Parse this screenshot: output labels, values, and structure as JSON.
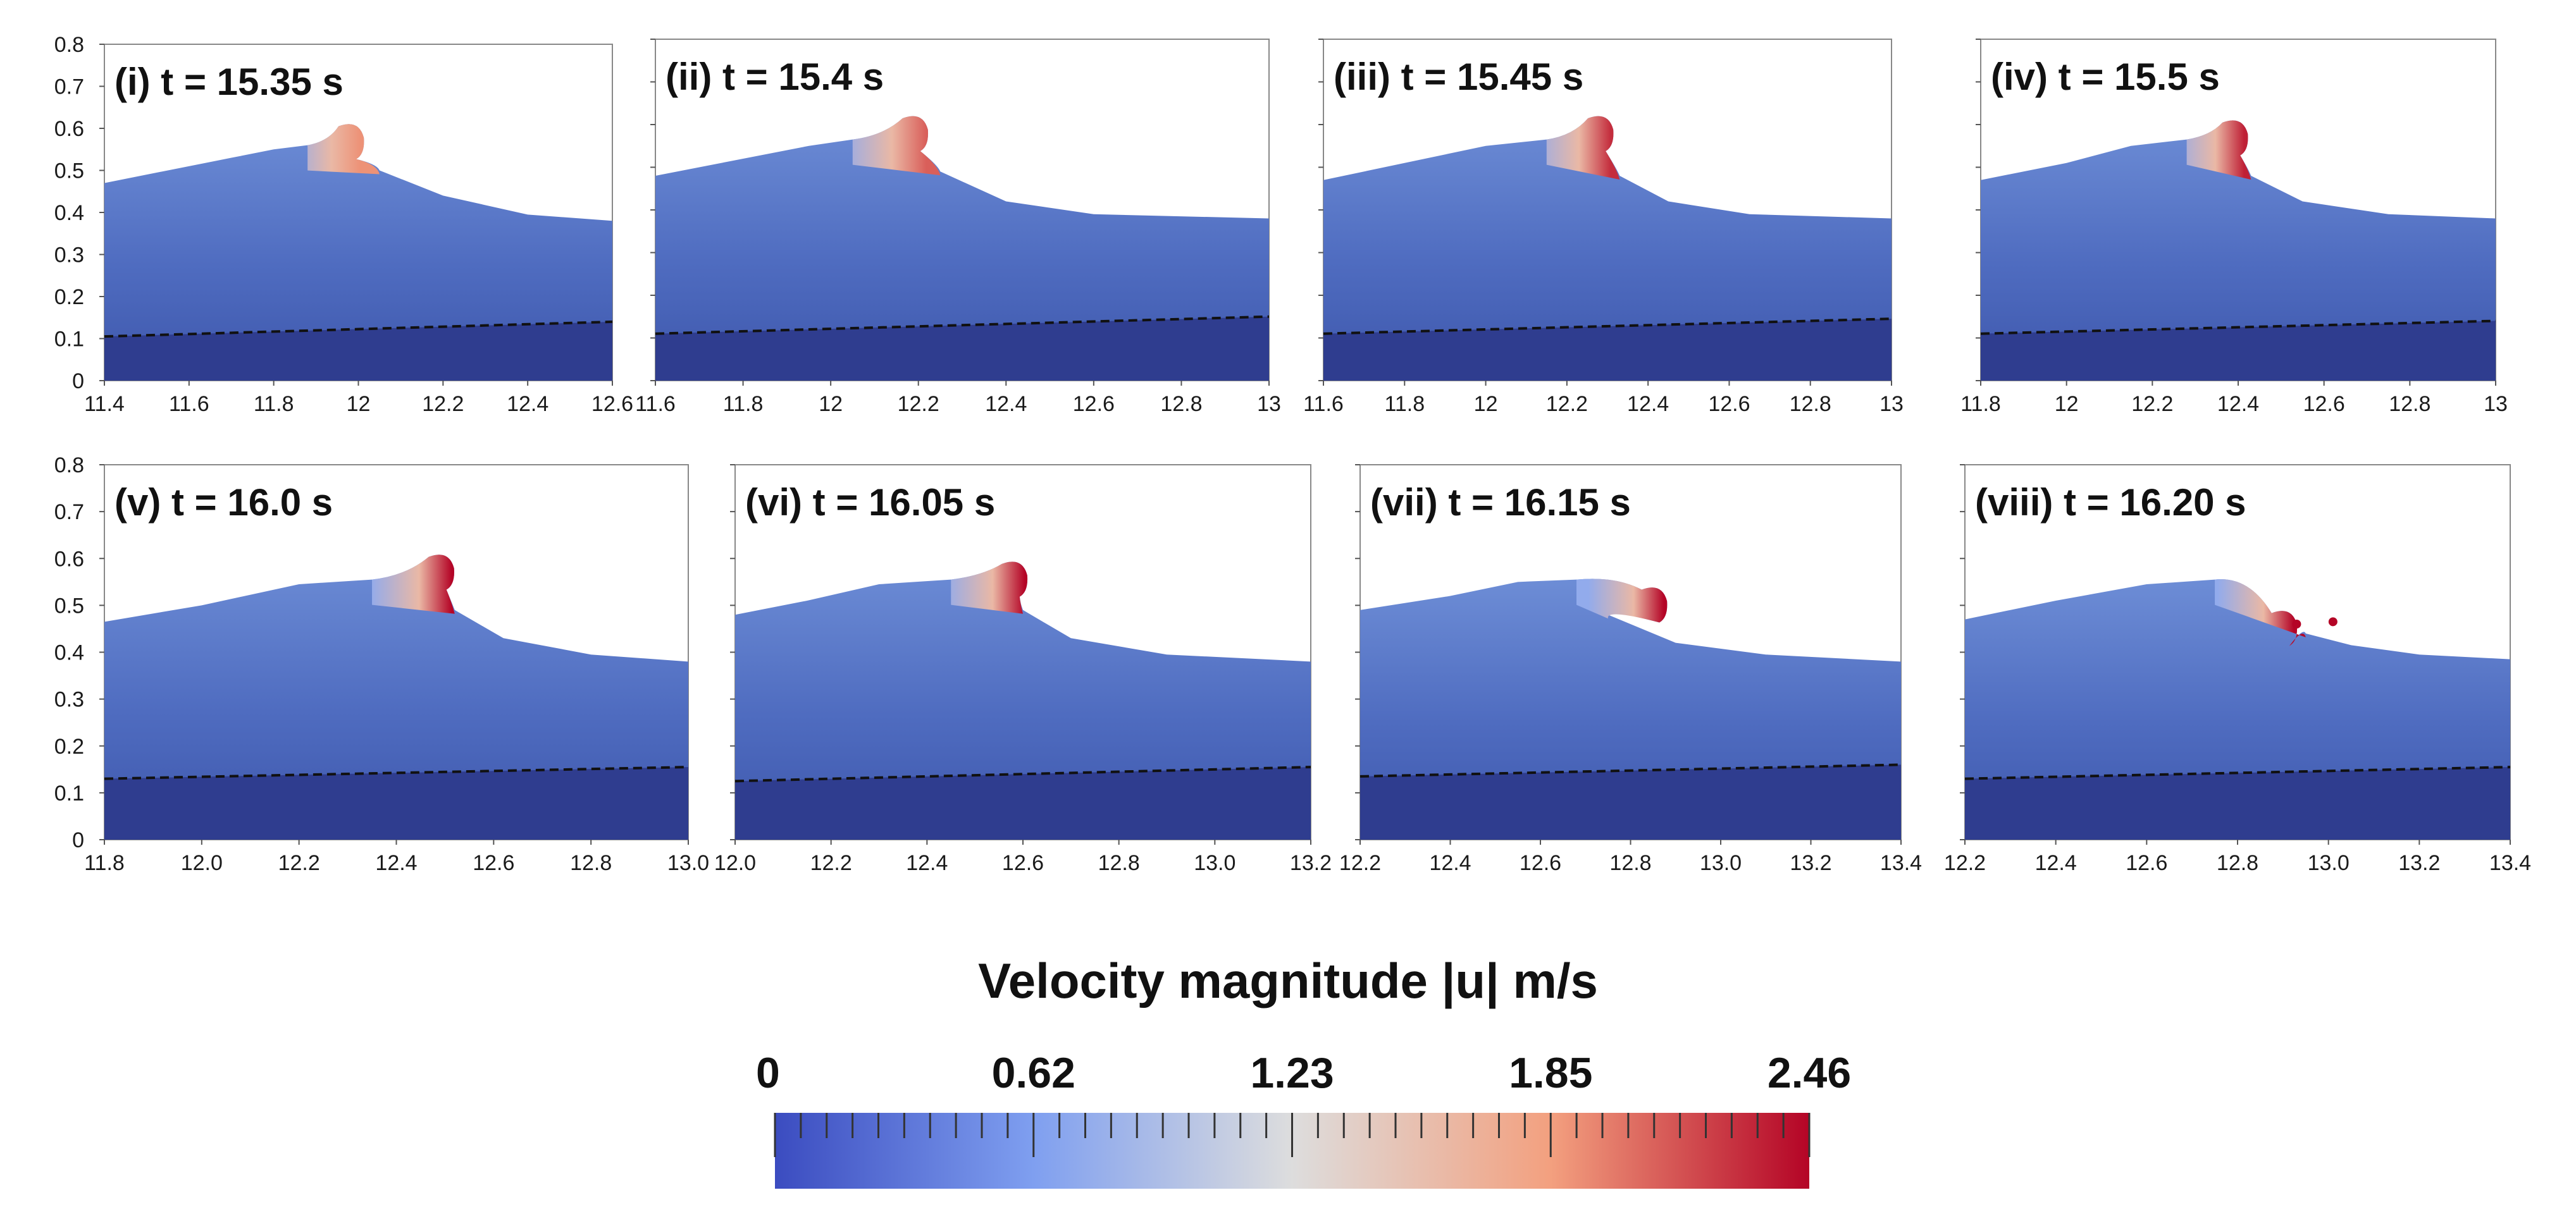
{
  "figure": {
    "description_title": "Velocity magnitude |u| m/s"
  },
  "chart_data": [
    {
      "type": "area",
      "label": "(i) t = 15.35 s",
      "xlim": [
        11.4,
        12.6
      ],
      "ylim": [
        0,
        0.8
      ],
      "xticks": [
        "11.4",
        "11.6",
        "11.8",
        "12",
        "12.2",
        "12.4",
        "12.6"
      ],
      "yticks": [
        "0",
        "0.1",
        "0.2",
        "0.3",
        "0.4",
        "0.5",
        "0.6",
        "0.7",
        "0.8"
      ],
      "show_yticklabels": true,
      "bed_line": {
        "x": [
          11.4,
          12.6
        ],
        "y": [
          0.105,
          0.14
        ]
      },
      "surface": {
        "x": [
          11.4,
          11.55,
          11.7,
          11.8,
          11.88
        ],
        "y": [
          0.47,
          0.5,
          0.53,
          0.55,
          0.56
        ]
      },
      "crest": {
        "x": 11.98,
        "y": 0.59,
        "peak_velocity": 1.9
      },
      "tail": {
        "x": [
          12.05,
          12.2,
          12.4,
          12.6
        ],
        "y": [
          0.5,
          0.44,
          0.395,
          0.38
        ]
      },
      "detached_drops": []
    },
    {
      "type": "area",
      "label": "(ii) t = 15.4 s",
      "xlim": [
        11.6,
        13.0
      ],
      "ylim": [
        0,
        0.8
      ],
      "xticks": [
        "11.6",
        "11.8",
        "12",
        "12.2",
        "12.4",
        "12.6",
        "12.8",
        "13"
      ],
      "yticks": [],
      "show_yticklabels": false,
      "bed_line": {
        "x": [
          11.6,
          13.0
        ],
        "y": [
          0.11,
          0.15
        ]
      },
      "surface": {
        "x": [
          11.6,
          11.8,
          11.95,
          12.05
        ],
        "y": [
          0.48,
          0.52,
          0.55,
          0.565
        ]
      },
      "crest": {
        "x": 12.19,
        "y": 0.6,
        "peak_velocity": 2.1
      },
      "tail": {
        "x": [
          12.25,
          12.4,
          12.6,
          13.0
        ],
        "y": [
          0.49,
          0.42,
          0.39,
          0.38
        ]
      },
      "detached_drops": []
    },
    {
      "type": "area",
      "label": "(iii) t = 15.45 s",
      "xlim": [
        11.6,
        13.0
      ],
      "ylim": [
        0,
        0.8
      ],
      "xticks": [
        "11.6",
        "11.8",
        "12",
        "12.2",
        "12.4",
        "12.6",
        "12.8",
        "13"
      ],
      "yticks": [],
      "show_yticklabels": false,
      "bed_line": {
        "x": [
          11.6,
          13.0
        ],
        "y": [
          0.11,
          0.145
        ]
      },
      "surface": {
        "x": [
          11.6,
          11.8,
          12.0,
          12.15
        ],
        "y": [
          0.47,
          0.51,
          0.55,
          0.565
        ]
      },
      "crest": {
        "x": 12.28,
        "y": 0.6,
        "peak_velocity": 2.3
      },
      "tail": {
        "x": [
          12.33,
          12.45,
          12.65,
          13.0
        ],
        "y": [
          0.48,
          0.42,
          0.39,
          0.38
        ]
      },
      "detached_drops": []
    },
    {
      "type": "area",
      "label": "(iv) t = 15.5 s",
      "xlim": [
        11.8,
        13.0
      ],
      "ylim": [
        0,
        0.8
      ],
      "xticks": [
        "11.8",
        "12",
        "12.2",
        "12.4",
        "12.6",
        "12.8",
        "13"
      ],
      "yticks": [],
      "show_yticklabels": false,
      "bed_line": {
        "x": [
          11.8,
          13.0
        ],
        "y": [
          0.11,
          0.14
        ]
      },
      "surface": {
        "x": [
          11.8,
          12.0,
          12.15,
          12.28
        ],
        "y": [
          0.47,
          0.51,
          0.55,
          0.565
        ]
      },
      "crest": {
        "x": 12.39,
        "y": 0.59,
        "peak_velocity": 2.35
      },
      "tail": {
        "x": [
          12.43,
          12.55,
          12.75,
          13.0
        ],
        "y": [
          0.48,
          0.42,
          0.39,
          0.38
        ]
      },
      "detached_drops": []
    },
    {
      "type": "area",
      "label": "(v) t = 16.0 s",
      "xlim": [
        11.8,
        13.0
      ],
      "ylim": [
        0,
        0.8
      ],
      "xticks": [
        "11.8",
        "12.0",
        "12.2",
        "12.4",
        "12.6",
        "12.8",
        "13.0"
      ],
      "yticks": [
        "0",
        "0.1",
        "0.2",
        "0.3",
        "0.4",
        "0.5",
        "0.6",
        "0.7",
        "0.8"
      ],
      "show_yticklabels": true,
      "bed_line": {
        "x": [
          11.8,
          13.0
        ],
        "y": [
          0.13,
          0.155
        ]
      },
      "surface": {
        "x": [
          11.8,
          12.0,
          12.2,
          12.35
        ],
        "y": [
          0.465,
          0.5,
          0.545,
          0.555
        ]
      },
      "crest": {
        "x": 12.49,
        "y": 0.59,
        "peak_velocity": 2.46
      },
      "tail": {
        "x": [
          12.52,
          12.62,
          12.8,
          13.0
        ],
        "y": [
          0.49,
          0.43,
          0.395,
          0.38
        ]
      },
      "detached_drops": []
    },
    {
      "type": "area",
      "label": "(vi) t = 16.05 s",
      "xlim": [
        12.0,
        13.2
      ],
      "ylim": [
        0,
        0.8
      ],
      "xticks": [
        "12.0",
        "12.2",
        "12.4",
        "12.6",
        "12.8",
        "13.0",
        "13.2"
      ],
      "yticks": [],
      "show_yticklabels": false,
      "bed_line": {
        "x": [
          12.0,
          13.2
        ],
        "y": [
          0.125,
          0.155
        ]
      },
      "surface": {
        "x": [
          12.0,
          12.15,
          12.3,
          12.45
        ],
        "y": [
          0.48,
          0.51,
          0.545,
          0.555
        ]
      },
      "crest": {
        "x": 12.58,
        "y": 0.575,
        "peak_velocity": 2.46
      },
      "tail": {
        "x": [
          12.6,
          12.7,
          12.9,
          13.2
        ],
        "y": [
          0.49,
          0.43,
          0.395,
          0.38
        ]
      },
      "detached_drops": []
    },
    {
      "type": "area",
      "label": "(vii) t = 16.15 s",
      "xlim": [
        12.2,
        13.4
      ],
      "ylim": [
        0,
        0.8
      ],
      "xticks": [
        "12.2",
        "12.4",
        "12.6",
        "12.8",
        "13.0",
        "13.2",
        "13.4"
      ],
      "yticks": [],
      "show_yticklabels": false,
      "bed_line": {
        "x": [
          12.2,
          13.4
        ],
        "y": [
          0.135,
          0.16
        ]
      },
      "surface": {
        "x": [
          12.2,
          12.4,
          12.55,
          12.68
        ],
        "y": [
          0.49,
          0.52,
          0.55,
          0.555
        ]
      },
      "crest": {
        "x": 12.85,
        "y": 0.52,
        "peak_velocity": 2.46
      },
      "tail": {
        "x": [
          12.75,
          12.9,
          13.1,
          13.4
        ],
        "y": [
          0.48,
          0.42,
          0.395,
          0.38
        ]
      },
      "detached_drops": []
    },
    {
      "type": "area",
      "label": "(viii) t = 16.20 s",
      "xlim": [
        12.2,
        13.4
      ],
      "ylim": [
        0,
        0.8
      ],
      "xticks": [
        "12.2",
        "12.4",
        "12.6",
        "12.8",
        "13.0",
        "13.2",
        "13.4"
      ],
      "yticks": [],
      "show_yticklabels": false,
      "bed_line": {
        "x": [
          12.2,
          13.4
        ],
        "y": [
          0.13,
          0.155
        ]
      },
      "surface": {
        "x": [
          12.2,
          12.4,
          12.6,
          12.75
        ],
        "y": [
          0.47,
          0.51,
          0.545,
          0.555
        ]
      },
      "crest": {
        "x": 12.9,
        "y": 0.47,
        "peak_velocity": 2.46
      },
      "tail": {
        "x": [
          12.95,
          13.05,
          13.2,
          13.4
        ],
        "y": [
          0.44,
          0.415,
          0.395,
          0.385
        ]
      },
      "detached_drops": [
        {
          "x": 12.93,
          "y": 0.46
        },
        {
          "x": 13.01,
          "y": 0.465
        }
      ]
    }
  ],
  "colorbar": {
    "title": "Velocity magnitude |u| m/s",
    "vmin": 0,
    "vmax": 2.46,
    "tick_labels": [
      "0",
      "0.62",
      "1.23",
      "1.85",
      "2.46"
    ],
    "colors": {
      "low": "#3b4cc0",
      "mid": "#dddddd",
      "high": "#b40426"
    }
  },
  "colors": {
    "water_deep": "#2f3d8f",
    "water_body": "#4a68bd",
    "water_light": "#6c8fd6",
    "bed_line": "#111111",
    "frame": "#888888"
  }
}
